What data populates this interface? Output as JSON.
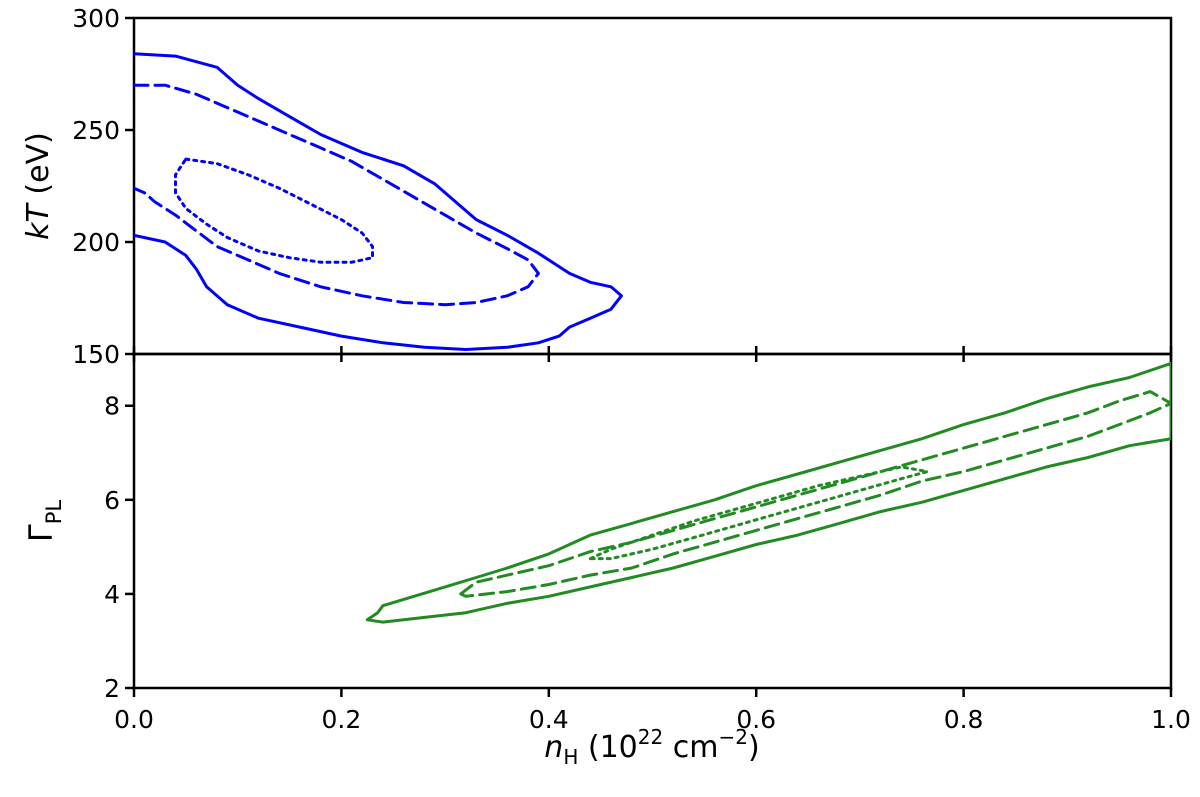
{
  "chart_data": [
    {
      "type": "line",
      "panel": "top",
      "ylabel_italic": "kT",
      "ylabel_rest": " (eV)",
      "xlim": [
        0.0,
        1.0
      ],
      "ylim": [
        150,
        300
      ],
      "yticks": [
        150,
        200,
        250,
        300
      ],
      "ytick_labels": [
        "150",
        "200",
        "250",
        "300"
      ],
      "color": "#0000ff",
      "series": [
        {
          "name": "outer",
          "style": "solid",
          "points": [
            [
              0.0,
              284
            ],
            [
              0.04,
              283
            ],
            [
              0.08,
              278
            ],
            [
              0.1,
              270
            ],
            [
              0.12,
              264
            ],
            [
              0.15,
              256
            ],
            [
              0.18,
              248
            ],
            [
              0.22,
              240
            ],
            [
              0.26,
              234
            ],
            [
              0.29,
              226
            ],
            [
              0.31,
              218
            ],
            [
              0.33,
              210
            ],
            [
              0.36,
              203
            ],
            [
              0.39,
              195
            ],
            [
              0.42,
              186
            ],
            [
              0.44,
              182
            ],
            [
              0.46,
              180
            ],
            [
              0.47,
              176
            ],
            [
              0.46,
              170
            ],
            [
              0.44,
              166
            ],
            [
              0.42,
              162
            ],
            [
              0.41,
              158
            ],
            [
              0.39,
              155
            ],
            [
              0.36,
              153
            ],
            [
              0.32,
              152
            ],
            [
              0.28,
              153
            ],
            [
              0.24,
              155
            ],
            [
              0.2,
              158
            ],
            [
              0.16,
              162
            ],
            [
              0.12,
              166
            ],
            [
              0.09,
              172
            ],
            [
              0.07,
              180
            ],
            [
              0.06,
              188
            ],
            [
              0.05,
              194
            ],
            [
              0.03,
              200
            ],
            [
              0.0,
              203
            ]
          ]
        },
        {
          "name": "middle",
          "style": "dashed",
          "points": [
            [
              0.0,
              270
            ],
            [
              0.03,
              270
            ],
            [
              0.06,
              266
            ],
            [
              0.09,
              260
            ],
            [
              0.12,
              254
            ],
            [
              0.15,
              248
            ],
            [
              0.18,
              242
            ],
            [
              0.21,
              236
            ],
            [
              0.24,
              228
            ],
            [
              0.27,
              220
            ],
            [
              0.3,
              212
            ],
            [
              0.33,
              204
            ],
            [
              0.36,
              197
            ],
            [
              0.38,
              192
            ],
            [
              0.39,
              186
            ],
            [
              0.38,
              180
            ],
            [
              0.36,
              176
            ],
            [
              0.33,
              173
            ],
            [
              0.3,
              172
            ],
            [
              0.26,
              173
            ],
            [
              0.22,
              176
            ],
            [
              0.18,
              180
            ],
            [
              0.14,
              186
            ],
            [
              0.11,
              192
            ],
            [
              0.08,
              198
            ],
            [
              0.06,
              205
            ],
            [
              0.04,
              212
            ],
            [
              0.02,
              218
            ],
            [
              0.01,
              222
            ],
            [
              0.0,
              224
            ]
          ]
        },
        {
          "name": "inner",
          "style": "dotted",
          "points": [
            [
              0.05,
              237
            ],
            [
              0.08,
              235
            ],
            [
              0.11,
              230
            ],
            [
              0.14,
              224
            ],
            [
              0.17,
              217
            ],
            [
              0.2,
              210
            ],
            [
              0.22,
              204
            ],
            [
              0.23,
              198
            ],
            [
              0.23,
              193
            ],
            [
              0.21,
              191
            ],
            [
              0.18,
              191
            ],
            [
              0.15,
              193
            ],
            [
              0.12,
              196
            ],
            [
              0.09,
              202
            ],
            [
              0.07,
              208
            ],
            [
              0.05,
              215
            ],
            [
              0.04,
              222
            ],
            [
              0.04,
              230
            ],
            [
              0.05,
              237
            ]
          ]
        }
      ]
    },
    {
      "type": "line",
      "panel": "bottom",
      "ylabel_main": "Γ",
      "ylabel_sub": "PL",
      "xlabel_main": "n",
      "xlabel_sub": "H",
      "xlabel_unit": " (10",
      "xlabel_exp1": "22",
      "xlabel_unit2": " cm",
      "xlabel_exp2": "−2",
      "xlabel_close": ")",
      "xlim": [
        0.0,
        1.0
      ],
      "ylim": [
        2,
        9.1
      ],
      "xticks": [
        0.0,
        0.2,
        0.4,
        0.6,
        0.8,
        1.0
      ],
      "xtick_labels": [
        "0.0",
        "0.2",
        "0.4",
        "0.6",
        "0.8",
        "1.0"
      ],
      "yticks": [
        2,
        4,
        6,
        8
      ],
      "ytick_labels": [
        "2",
        "4",
        "6",
        "8"
      ],
      "color": "#228b22",
      "series": [
        {
          "name": "outer",
          "style": "solid",
          "points": [
            [
              0.225,
              3.45
            ],
            [
              0.235,
              3.6
            ],
            [
              0.24,
              3.75
            ],
            [
              0.27,
              3.95
            ],
            [
              0.3,
              4.15
            ],
            [
              0.33,
              4.35
            ],
            [
              0.36,
              4.55
            ],
            [
              0.4,
              4.85
            ],
            [
              0.44,
              5.25
            ],
            [
              0.48,
              5.5
            ],
            [
              0.52,
              5.75
            ],
            [
              0.56,
              6.0
            ],
            [
              0.6,
              6.3
            ],
            [
              0.64,
              6.55
            ],
            [
              0.68,
              6.8
            ],
            [
              0.72,
              7.05
            ],
            [
              0.76,
              7.3
            ],
            [
              0.8,
              7.6
            ],
            [
              0.84,
              7.85
            ],
            [
              0.88,
              8.15
            ],
            [
              0.92,
              8.4
            ],
            [
              0.96,
              8.6
            ],
            [
              1.0,
              8.9
            ],
            [
              1.0,
              7.3
            ],
            [
              0.96,
              7.15
            ],
            [
              0.92,
              6.9
            ],
            [
              0.88,
              6.7
            ],
            [
              0.84,
              6.45
            ],
            [
              0.8,
              6.2
            ],
            [
              0.76,
              5.95
            ],
            [
              0.72,
              5.75
            ],
            [
              0.68,
              5.5
            ],
            [
              0.64,
              5.25
            ],
            [
              0.6,
              5.05
            ],
            [
              0.56,
              4.8
            ],
            [
              0.52,
              4.55
            ],
            [
              0.48,
              4.35
            ],
            [
              0.44,
              4.15
            ],
            [
              0.4,
              3.95
            ],
            [
              0.36,
              3.8
            ],
            [
              0.32,
              3.6
            ],
            [
              0.28,
              3.5
            ],
            [
              0.24,
              3.4
            ],
            [
              0.225,
              3.45
            ]
          ]
        },
        {
          "name": "middle",
          "style": "dashed",
          "points": [
            [
              0.315,
              4.0
            ],
            [
              0.33,
              4.25
            ],
            [
              0.36,
              4.4
            ],
            [
              0.4,
              4.6
            ],
            [
              0.44,
              4.9
            ],
            [
              0.48,
              5.1
            ],
            [
              0.52,
              5.35
            ],
            [
              0.56,
              5.6
            ],
            [
              0.6,
              5.85
            ],
            [
              0.64,
              6.1
            ],
            [
              0.68,
              6.35
            ],
            [
              0.72,
              6.6
            ],
            [
              0.76,
              6.85
            ],
            [
              0.8,
              7.1
            ],
            [
              0.84,
              7.35
            ],
            [
              0.88,
              7.6
            ],
            [
              0.92,
              7.85
            ],
            [
              0.95,
              8.1
            ],
            [
              0.98,
              8.3
            ],
            [
              1.0,
              8.05
            ],
            [
              0.98,
              7.85
            ],
            [
              0.95,
              7.6
            ],
            [
              0.92,
              7.35
            ],
            [
              0.88,
              7.1
            ],
            [
              0.84,
              6.85
            ],
            [
              0.8,
              6.6
            ],
            [
              0.76,
              6.4
            ],
            [
              0.72,
              6.1
            ],
            [
              0.68,
              5.85
            ],
            [
              0.64,
              5.6
            ],
            [
              0.6,
              5.35
            ],
            [
              0.56,
              5.1
            ],
            [
              0.52,
              4.85
            ],
            [
              0.48,
              4.55
            ],
            [
              0.44,
              4.4
            ],
            [
              0.4,
              4.2
            ],
            [
              0.36,
              4.05
            ],
            [
              0.32,
              3.95
            ],
            [
              0.315,
              4.0
            ]
          ]
        },
        {
          "name": "inner",
          "style": "dotted",
          "points": [
            [
              0.44,
              4.75
            ],
            [
              0.46,
              4.95
            ],
            [
              0.5,
              5.25
            ],
            [
              0.54,
              5.55
            ],
            [
              0.58,
              5.8
            ],
            [
              0.62,
              6.05
            ],
            [
              0.66,
              6.3
            ],
            [
              0.7,
              6.5
            ],
            [
              0.74,
              6.7
            ],
            [
              0.765,
              6.6
            ],
            [
              0.74,
              6.45
            ],
            [
              0.7,
              6.2
            ],
            [
              0.66,
              5.95
            ],
            [
              0.62,
              5.7
            ],
            [
              0.58,
              5.45
            ],
            [
              0.54,
              5.2
            ],
            [
              0.5,
              4.95
            ],
            [
              0.46,
              4.75
            ],
            [
              0.44,
              4.75
            ]
          ]
        }
      ]
    }
  ]
}
